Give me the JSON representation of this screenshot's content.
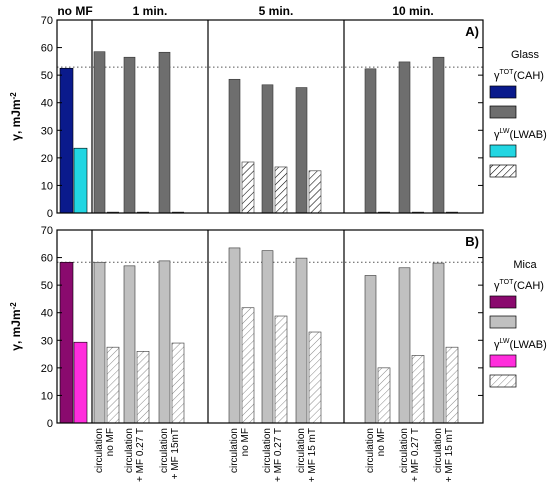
{
  "chart_data": {
    "type": "bar",
    "group_labels": [
      "no MF",
      "1 min.",
      "5 min.",
      "10 min."
    ],
    "category_labels": [
      {
        "line1": "circulation",
        "line2": "no MF"
      },
      {
        "line1": "circulation",
        "line2": "+ MF 0.27 T"
      },
      {
        "line1": "circulation",
        "line2": "+ MF 15mT"
      },
      {
        "line1": "circulation",
        "line2": "no MF"
      },
      {
        "line1": "circulation",
        "line2": "+ MF 0.27 T"
      },
      {
        "line1": "circulation",
        "line2": "+ MF 15 mT"
      },
      {
        "line1": "circulation",
        "line2": "no MF"
      },
      {
        "line1": "circulation",
        "line2": "+ MF 0.27 T"
      },
      {
        "line1": "circulation",
        "line2": "+ MF 15 mT"
      }
    ],
    "ylabel_main": "γ, mJm",
    "ylabel_exp": "-2",
    "ylim": [
      0,
      70
    ],
    "yticks": [
      0,
      10,
      20,
      30,
      40,
      50,
      60,
      70
    ],
    "panels": [
      {
        "id": "A",
        "panel_label": "A)",
        "reference_line": 52.9,
        "legend": {
          "title": "Glass",
          "tot_label_main": "γ",
          "tot_label_sup": "TOT",
          "tot_label_suffix": "(CAH)",
          "lw_label_main": "γ",
          "lw_label_sup": "LW",
          "lw_label_suffix": "(LWAB)"
        },
        "colors": {
          "tot_ref": "#0a1a8c",
          "lw_ref": "#22d6e2",
          "tot": "#6e6e6e",
          "lw_hatch": "#000000"
        },
        "no_mf": {
          "tot": 52.5,
          "lw": 23.5
        },
        "tot_values": [
          58.5,
          56.5,
          58.3,
          48.5,
          46.5,
          45.5,
          52.3,
          54.8,
          56.5
        ],
        "lw_values": [
          null,
          null,
          null,
          18.5,
          16.7,
          15.3,
          null,
          null,
          null
        ]
      },
      {
        "id": "B",
        "panel_label": "B)",
        "reference_line": 58.3,
        "legend": {
          "title": "Mica",
          "tot_label_main": "γ",
          "tot_label_sup": "TOT",
          "tot_label_suffix": "(CAH)",
          "lw_label_main": "γ",
          "lw_label_sup": "LW",
          "lw_label_suffix": "(LWAB)"
        },
        "colors": {
          "tot_ref": "#8a0a6e",
          "lw_ref": "#ff2ddc",
          "tot": "#c0c0c0",
          "lw_hatch": "#8a8a8a"
        },
        "no_mf": {
          "tot": 58.3,
          "lw": 29.3
        },
        "tot_values": [
          58.3,
          57.0,
          58.8,
          63.5,
          62.5,
          59.8,
          53.5,
          56.3,
          58.0
        ],
        "lw_values": [
          27.5,
          26.0,
          29.0,
          41.8,
          38.8,
          33.0,
          20.0,
          24.5,
          27.5
        ]
      }
    ]
  }
}
